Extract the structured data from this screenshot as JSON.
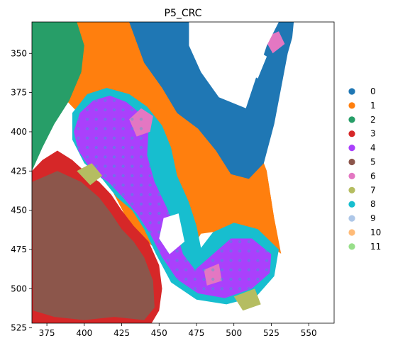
{
  "chart_data": {
    "type": "scatter",
    "title": "P5_CRC",
    "xlabel": "",
    "ylabel": "",
    "xlim": [
      365,
      567
    ],
    "ylim": [
      522,
      330
    ],
    "y_inverted": true,
    "xticks": [
      375,
      400,
      425,
      450,
      475,
      500,
      525,
      550
    ],
    "yticks": [
      350,
      375,
      400,
      425,
      450,
      475,
      500,
      525
    ],
    "grid": false,
    "legend_position": "right",
    "legend": [
      {
        "label": "0",
        "color": "#1f77b4"
      },
      {
        "label": "1",
        "color": "#ff7f0e"
      },
      {
        "label": "2",
        "color": "#279e68"
      },
      {
        "label": "3",
        "color": "#d62728"
      },
      {
        "label": "4",
        "color": "#aa40fc"
      },
      {
        "label": "5",
        "color": "#8c564b"
      },
      {
        "label": "6",
        "color": "#e377c2"
      },
      {
        "label": "7",
        "color": "#b5bd61"
      },
      {
        "label": "8",
        "color": "#17becf"
      },
      {
        "label": "9",
        "color": "#aec7e8"
      },
      {
        "label": "10",
        "color": "#ffbb78"
      },
      {
        "label": "11",
        "color": "#98df8a"
      }
    ],
    "regions": [
      {
        "cluster": "1",
        "points": [
          [
            365,
            330
          ],
          [
            453,
            330
          ],
          [
            470,
            345
          ],
          [
            490,
            365
          ],
          [
            510,
            395
          ],
          [
            522,
            425
          ],
          [
            527,
            455
          ],
          [
            532,
            478
          ],
          [
            520,
            470
          ],
          [
            500,
            462
          ],
          [
            478,
            465
          ],
          [
            470,
            478
          ],
          [
            462,
            488
          ],
          [
            452,
            478
          ],
          [
            432,
            462
          ],
          [
            420,
            440
          ],
          [
            410,
            415
          ],
          [
            400,
            392
          ],
          [
            388,
            380
          ],
          [
            375,
            372
          ],
          [
            365,
            375
          ]
        ]
      },
      {
        "cluster": "2",
        "points": [
          [
            365,
            330
          ],
          [
            395,
            330
          ],
          [
            400,
            345
          ],
          [
            398,
            362
          ],
          [
            390,
            380
          ],
          [
            380,
            395
          ],
          [
            372,
            410
          ],
          [
            365,
            425
          ]
        ]
      },
      {
        "cluster": "0",
        "points": [
          [
            430,
            330
          ],
          [
            542,
            330
          ],
          [
            536,
            350
          ],
          [
            532,
            370
          ],
          [
            527,
            395
          ],
          [
            520,
            420
          ],
          [
            510,
            430
          ],
          [
            498,
            427
          ],
          [
            488,
            412
          ],
          [
            476,
            398
          ],
          [
            462,
            388
          ],
          [
            452,
            372
          ],
          [
            440,
            356
          ]
        ]
      },
      {
        "cluster": "3",
        "points": [
          [
            365,
            425
          ],
          [
            372,
            418
          ],
          [
            382,
            412
          ],
          [
            392,
            418
          ],
          [
            400,
            425
          ],
          [
            410,
            432
          ],
          [
            418,
            440
          ],
          [
            425,
            450
          ],
          [
            433,
            460
          ],
          [
            443,
            470
          ],
          [
            450,
            485
          ],
          [
            452,
            500
          ],
          [
            450,
            514
          ],
          [
            445,
            522
          ],
          [
            365,
            522
          ]
        ]
      },
      {
        "cluster": "5",
        "points": [
          [
            365,
            432
          ],
          [
            382,
            425
          ],
          [
            398,
            432
          ],
          [
            410,
            442
          ],
          [
            418,
            452
          ],
          [
            425,
            462
          ],
          [
            433,
            470
          ],
          [
            440,
            480
          ],
          [
            446,
            495
          ],
          [
            447,
            512
          ],
          [
            440,
            520
          ],
          [
            420,
            518
          ],
          [
            400,
            520
          ],
          [
            380,
            518
          ],
          [
            366,
            514
          ]
        ]
      },
      {
        "cluster": "8",
        "points": [
          [
            392,
            388
          ],
          [
            402,
            376
          ],
          [
            415,
            372
          ],
          [
            430,
            376
          ],
          [
            442,
            384
          ],
          [
            452,
            396
          ],
          [
            458,
            410
          ],
          [
            462,
            428
          ],
          [
            470,
            445
          ],
          [
            475,
            460
          ],
          [
            478,
            474
          ],
          [
            486,
            464
          ],
          [
            500,
            458
          ],
          [
            516,
            462
          ],
          [
            530,
            475
          ],
          [
            527,
            492
          ],
          [
            515,
            505
          ],
          [
            495,
            510
          ],
          [
            475,
            507
          ],
          [
            458,
            496
          ],
          [
            448,
            478
          ],
          [
            440,
            462
          ],
          [
            432,
            450
          ],
          [
            422,
            442
          ],
          [
            412,
            430
          ],
          [
            400,
            420
          ],
          [
            392,
            405
          ]
        ]
      },
      {
        "cluster": "4",
        "points": [
          [
            397,
            388
          ],
          [
            406,
            380
          ],
          [
            417,
            377
          ],
          [
            428,
            381
          ],
          [
            437,
            388
          ],
          [
            443,
            398
          ],
          [
            442,
            415
          ],
          [
            447,
            432
          ],
          [
            455,
            448
          ],
          [
            461,
            462
          ],
          [
            466,
            478
          ],
          [
            474,
            488
          ],
          [
            486,
            478
          ],
          [
            498,
            468
          ],
          [
            512,
            468
          ],
          [
            525,
            478
          ],
          [
            524,
            490
          ],
          [
            512,
            500
          ],
          [
            494,
            506
          ],
          [
            476,
            503
          ],
          [
            462,
            494
          ],
          [
            452,
            480
          ],
          [
            444,
            465
          ],
          [
            435,
            452
          ],
          [
            426,
            442
          ],
          [
            416,
            432
          ],
          [
            405,
            425
          ],
          [
            396,
            412
          ],
          [
            393,
            400
          ]
        ]
      },
      {
        "cluster": "6",
        "points": [
          [
            430,
            392
          ],
          [
            438,
            385
          ],
          [
            446,
            390
          ],
          [
            444,
            400
          ],
          [
            435,
            403
          ]
        ]
      },
      {
        "cluster": "6",
        "points": [
          [
            520,
            340
          ],
          [
            530,
            336
          ],
          [
            534,
            344
          ],
          [
            526,
            350
          ]
        ]
      },
      {
        "cluster": "6",
        "points": [
          [
            490,
            362
          ],
          [
            500,
            358
          ],
          [
            508,
            368
          ],
          [
            498,
            372
          ]
        ]
      },
      {
        "cluster": "6",
        "points": [
          [
            480,
            488
          ],
          [
            490,
            484
          ],
          [
            492,
            495
          ],
          [
            482,
            498
          ]
        ]
      },
      {
        "cluster": "7",
        "points": [
          [
            395,
            425
          ],
          [
            405,
            420
          ],
          [
            412,
            428
          ],
          [
            404,
            434
          ]
        ]
      },
      {
        "cluster": "7",
        "points": [
          [
            500,
            505
          ],
          [
            514,
            500
          ],
          [
            518,
            510
          ],
          [
            506,
            514
          ]
        ]
      }
    ],
    "holes": [
      {
        "points": [
          [
            470,
            330
          ],
          [
            530,
            330
          ],
          [
            522,
            345
          ],
          [
            515,
            365
          ],
          [
            508,
            385
          ],
          [
            490,
            378
          ],
          [
            478,
            362
          ],
          [
            470,
            345
          ]
        ]
      },
      {
        "points": [
          [
            510,
            345
          ],
          [
            522,
            352
          ],
          [
            516,
            366
          ],
          [
            505,
            360
          ]
        ]
      },
      {
        "points": [
          [
            453,
            455
          ],
          [
            463,
            452
          ],
          [
            467,
            470
          ],
          [
            457,
            478
          ],
          [
            450,
            468
          ]
        ]
      },
      {
        "points": [
          [
            540,
            330
          ],
          [
            567,
            330
          ],
          [
            567,
            522
          ],
          [
            535,
            522
          ],
          [
            532,
            480
          ],
          [
            527,
            455
          ],
          [
            522,
            425
          ],
          [
            530,
            400
          ],
          [
            536,
            370
          ]
        ]
      }
    ]
  }
}
